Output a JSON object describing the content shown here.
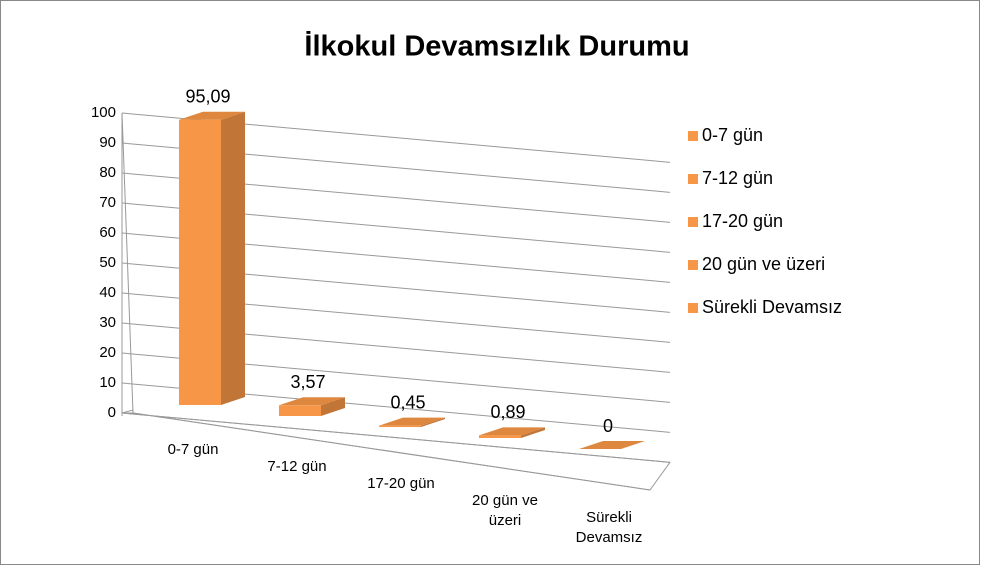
{
  "chart_data": {
    "type": "bar3d",
    "title": "İlkokul Devamsızlık Durumu",
    "categories": [
      "0-7 gün",
      "7-12 gün",
      "17-20 gün",
      "20 gün ve üzeri",
      "Sürekli Devamsız"
    ],
    "values": [
      95.09,
      3.57,
      0.45,
      0.89,
      0
    ],
    "value_labels": [
      "95,09",
      "3,57",
      "0,45",
      "0,89",
      "0"
    ],
    "color": "#f79646",
    "ylim": [
      0,
      100
    ],
    "yticks": [
      0,
      10,
      20,
      30,
      40,
      50,
      60,
      70,
      80,
      90,
      100
    ],
    "grid": true,
    "legend": "right"
  }
}
